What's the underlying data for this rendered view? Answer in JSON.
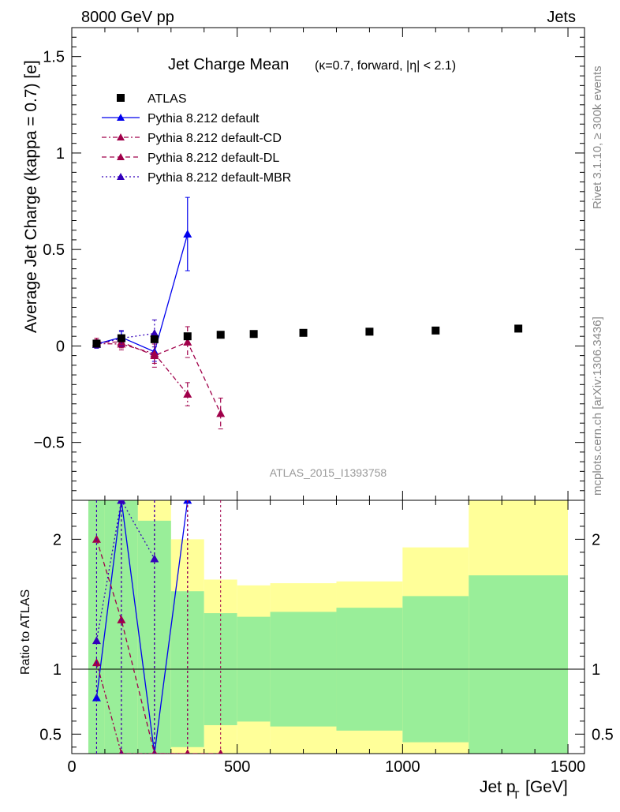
{
  "header": {
    "energy_label": "8000 GeV pp",
    "process_label": "Jets",
    "side_label_top": "Rivet 3.1.10, ≥ 300k events",
    "side_label_bottom": "mcplots.cern.ch [arXiv:1306.3436]"
  },
  "chart_data": {
    "type": "line",
    "title": "Jet Charge Mean",
    "subtitle": "(κ=0.7, forward, |η| < 2.1)",
    "analysis_id": "ATLAS_2015_I1393758",
    "xlabel": "Jet p",
    "xlabel_sub": "T",
    "xlabel_unit": "[GeV]",
    "ylabel": "Average Jet Charge (kappa = 0.7) [e]",
    "ratio_ylabel": "Ratio to ATLAS",
    "xlim": [
      0,
      1550
    ],
    "ylim": [
      -0.8,
      1.65
    ],
    "ratio_ylim": [
      0.35,
      2.3
    ],
    "x_ticks": [
      "0",
      "500",
      "1000",
      "1500"
    ],
    "y_ticks": [
      "−0.5",
      "0",
      "0.5",
      "1",
      "1.5"
    ],
    "ratio_ticks": [
      "0.5",
      "1",
      "2"
    ],
    "bins": [
      [
        50,
        100
      ],
      [
        100,
        200
      ],
      [
        200,
        300
      ],
      [
        300,
        400
      ],
      [
        400,
        500
      ],
      [
        500,
        600
      ],
      [
        600,
        800
      ],
      [
        800,
        1000
      ],
      [
        1000,
        1200
      ],
      [
        1200,
        1500
      ]
    ],
    "data": {
      "name": "ATLAS",
      "x": [
        75,
        150,
        250,
        350,
        450,
        550,
        700,
        900,
        1100,
        1350
      ],
      "y": [
        0.012,
        0.04,
        0.035,
        0.05,
        0.058,
        0.062,
        0.068,
        0.074,
        0.08,
        0.09
      ],
      "band_inner": [
        0.22,
        0.07,
        0.04,
        0.03,
        0.025,
        0.025,
        0.03,
        0.035,
        0.045,
        0.065
      ],
      "band_outer": [
        0.45,
        0.12,
        0.1,
        0.05,
        0.04,
        0.04,
        0.045,
        0.05,
        0.075,
        0.14
      ]
    },
    "series": [
      {
        "name": "Pythia 8.212 default",
        "color": "#0000ee",
        "dash": "",
        "x": [
          75,
          150,
          250,
          350
        ],
        "y": [
          0.01,
          0.045,
          -0.03,
          0.58
        ],
        "err": [
          0.02,
          0.03,
          0.05,
          0.19
        ],
        "ratio": [
          0.78,
          2.3,
          0.35,
          2.3
        ]
      },
      {
        "name": "Pythia 8.212 default-CD",
        "color": "#a0004a",
        "dash": "6,3,2,3",
        "x": [
          75,
          150,
          250,
          350
        ],
        "y": [
          0.012,
          0.01,
          -0.04,
          -0.25
        ],
        "err": [
          0.02,
          0.03,
          0.05,
          0.06
        ],
        "ratio": [
          1.05,
          0.35,
          0.35,
          0.35
        ]
      },
      {
        "name": "Pythia 8.212 default-DL",
        "color": "#a0004a",
        "dash": "6,4",
        "x": [
          75,
          150,
          250,
          350,
          450
        ],
        "y": [
          0.02,
          0.02,
          -0.05,
          0.02,
          -0.35
        ],
        "err": [
          0.02,
          0.03,
          0.06,
          0.08,
          0.08
        ],
        "ratio": [
          2.0,
          1.38,
          0.35,
          0.35,
          0.35
        ]
      },
      {
        "name": "Pythia 8.212 default-MBR",
        "color": "#3300bb",
        "dash": "2,3",
        "x": [
          75,
          150,
          250
        ],
        "y": [
          0.008,
          0.04,
          0.065
        ],
        "err": [
          0.02,
          0.04,
          0.07
        ],
        "ratio": [
          1.22,
          2.3,
          1.85
        ]
      }
    ]
  }
}
